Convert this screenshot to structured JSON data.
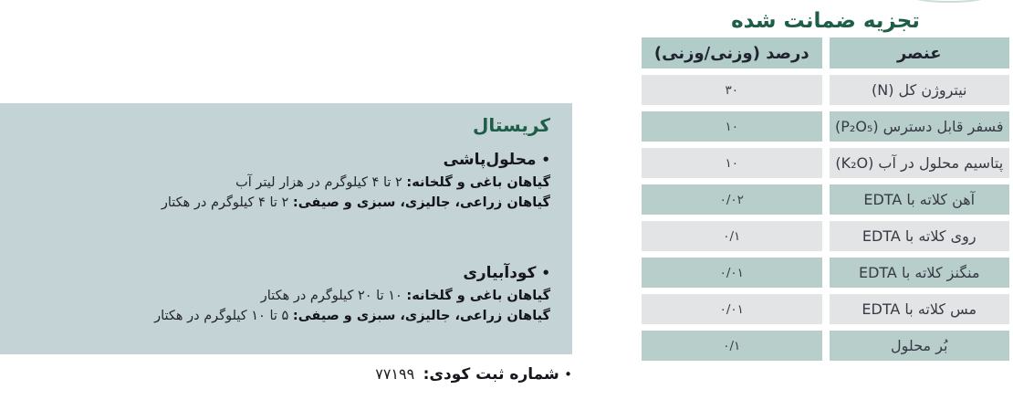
{
  "bullet": "•",
  "analysis": {
    "title": "تجزیه ضمانت شده",
    "headers": {
      "element": "عنصر",
      "percent": "درصد (وزنی/وزنی)"
    },
    "rows": [
      {
        "element": "نیتروژن کل (N)",
        "value": "۳۰"
      },
      {
        "element": "فسفر قابل دسترس (P₂O₅)",
        "value": "۱۰"
      },
      {
        "element": "پتاسیم محلول در آب (K₂O)",
        "value": "۱۰"
      },
      {
        "element": "آهن کلاته با EDTA",
        "value": "۰/۰۲"
      },
      {
        "element": "روی کلاته با EDTA",
        "value": "۰/۱"
      },
      {
        "element": "منگنز کلاته با EDTA",
        "value": "۰/۰۱"
      },
      {
        "element": "مس کلاته با EDTA",
        "value": "۰/۰۱"
      },
      {
        "element": "بُر محلول",
        "value": "۰/۱"
      }
    ]
  },
  "product": {
    "name": "کریستال",
    "sections": [
      {
        "heading": "محلول‌پاشی",
        "lines": [
          {
            "label": "گیاهان باغی و گلخانه:",
            "text": "۲ تا ۴ کیلوگرم در هزار لیتر آب"
          },
          {
            "label": "گیاهان زراعی، جالیزی، سبزی و صیفی:",
            "text": "۲ تا ۴ کیلوگرم در هکتار"
          }
        ]
      },
      {
        "heading": "کودآبیاری",
        "lines": [
          {
            "label": "گیاهان باغی و گلخانه:",
            "text": "۱۰ تا ۲۰ کیلوگرم در هکتار"
          },
          {
            "label": "گیاهان زراعی، جالیزی، سبزی و صیفی:",
            "text": "۵ تا ۱۰ کیلوگرم در هکتار"
          }
        ]
      }
    ]
  },
  "registration": {
    "label": "شماره ثبت کودی:",
    "number": "۷۷۱۹۹"
  },
  "colors": {
    "accent_green": "#1e5e49",
    "header_bg": "#b2cdc9",
    "teal_row": "#b7cecb",
    "gray_row": "#e3e4e5",
    "usage_box_bg": "#c4d4d6"
  }
}
